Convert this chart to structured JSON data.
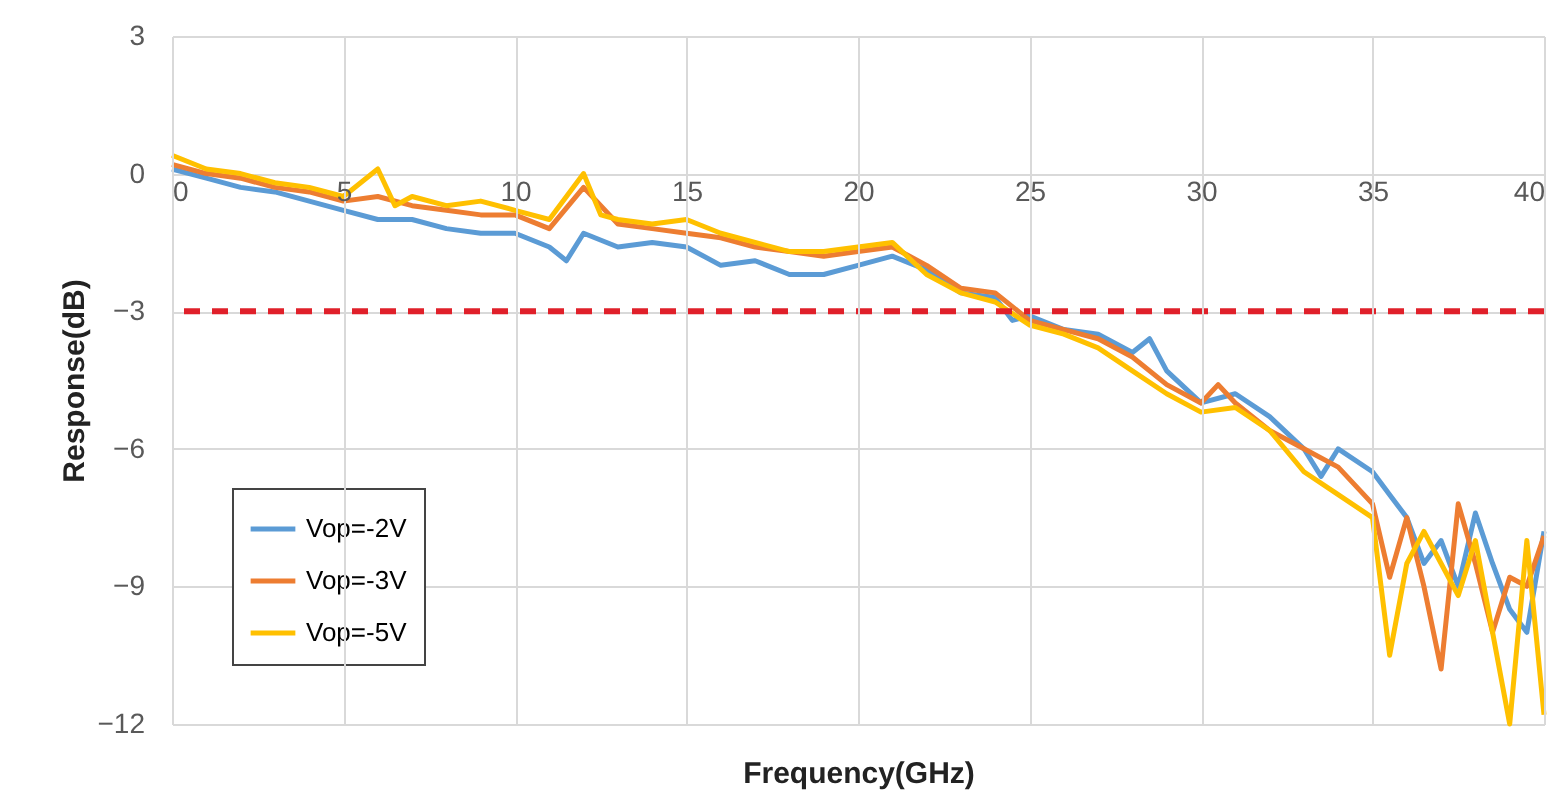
{
  "chart_data": {
    "type": "line",
    "xlabel": "Frequency(GHz)",
    "ylabel": "Response(dB)",
    "xlim": [
      0,
      40
    ],
    "ylim": [
      -12,
      3
    ],
    "xticks": [
      0,
      5,
      10,
      15,
      20,
      25,
      30,
      35,
      40
    ],
    "yticks": [
      -12,
      -9,
      -6,
      -3,
      0,
      3
    ],
    "grid": true,
    "legend": "bottom left",
    "line_style": "solid",
    "marker": "none",
    "series": [
      {
        "name": "Vop=-2V",
        "color": "#5b9bd5",
        "x": [
          0,
          1,
          2,
          3,
          4,
          5,
          6,
          7,
          8,
          9,
          10,
          11,
          11.5,
          12,
          13,
          14,
          15,
          16,
          17,
          18,
          19,
          20,
          21,
          22,
          23,
          24,
          24.5,
          25,
          26,
          27,
          28,
          28.5,
          29,
          30,
          31,
          32,
          33,
          33.5,
          34,
          35,
          35.5,
          36,
          36.5,
          37,
          37.5,
          38,
          38.5,
          39,
          39.5,
          40
        ],
        "values": [
          0.1,
          -0.1,
          -0.3,
          -0.4,
          -0.6,
          -0.8,
          -1.0,
          -1.0,
          -1.2,
          -1.3,
          -1.3,
          -1.6,
          -1.9,
          -1.3,
          -1.6,
          -1.5,
          -1.6,
          -2.0,
          -1.9,
          -2.2,
          -2.2,
          -2.0,
          -1.8,
          -2.1,
          -2.6,
          -2.7,
          -3.2,
          -3.1,
          -3.4,
          -3.5,
          -3.9,
          -3.6,
          -4.3,
          -5.0,
          -4.8,
          -5.3,
          -6.0,
          -6.6,
          -6.0,
          -6.5,
          -7.0,
          -7.5,
          -8.5,
          -8.0,
          -9.0,
          -7.4,
          -8.5,
          -9.5,
          -10.0,
          -7.8
        ]
      },
      {
        "name": "Vop=-3V",
        "color": "#ed7d31",
        "x": [
          0,
          1,
          2,
          3,
          4,
          5,
          6,
          7,
          8,
          9,
          10,
          11,
          12,
          13,
          14,
          15,
          16,
          17,
          18,
          19,
          20,
          21,
          22,
          23,
          24,
          25,
          26,
          27,
          28,
          29,
          30,
          30.5,
          31,
          32,
          33,
          34,
          35,
          35.5,
          36,
          36.5,
          37,
          37.5,
          38,
          38.5,
          39,
          39.5,
          40
        ],
        "values": [
          0.2,
          0.0,
          -0.1,
          -0.3,
          -0.4,
          -0.6,
          -0.5,
          -0.7,
          -0.8,
          -0.9,
          -0.9,
          -1.2,
          -0.3,
          -1.1,
          -1.2,
          -1.3,
          -1.4,
          -1.6,
          -1.7,
          -1.8,
          -1.7,
          -1.6,
          -2.0,
          -2.5,
          -2.6,
          -3.2,
          -3.4,
          -3.6,
          -4.0,
          -4.6,
          -5.0,
          -4.6,
          -5.0,
          -5.6,
          -6.0,
          -6.4,
          -7.2,
          -8.8,
          -7.5,
          -9.0,
          -10.8,
          -7.2,
          -8.5,
          -10.0,
          -8.8,
          -9.0,
          -7.9
        ]
      },
      {
        "name": "Vop=-5V",
        "color": "#ffc000",
        "x": [
          0,
          1,
          2,
          3,
          4,
          5,
          6,
          6.5,
          7,
          8,
          9,
          10,
          11,
          12,
          12.5,
          13,
          14,
          15,
          16,
          17,
          18,
          19,
          20,
          21,
          22,
          23,
          24,
          25,
          26,
          27,
          28,
          29,
          30,
          31,
          32,
          33,
          34,
          35,
          35.5,
          36,
          36.5,
          37,
          37.5,
          38,
          38.5,
          39,
          39.5,
          40
        ],
        "values": [
          0.4,
          0.1,
          0.0,
          -0.2,
          -0.3,
          -0.5,
          0.1,
          -0.7,
          -0.5,
          -0.7,
          -0.6,
          -0.8,
          -1.0,
          0.0,
          -0.9,
          -1.0,
          -1.1,
          -1.0,
          -1.3,
          -1.5,
          -1.7,
          -1.7,
          -1.6,
          -1.5,
          -2.2,
          -2.6,
          -2.8,
          -3.3,
          -3.5,
          -3.8,
          -4.3,
          -4.8,
          -5.2,
          -5.1,
          -5.6,
          -6.5,
          -7.0,
          -7.5,
          -10.5,
          -8.5,
          -7.8,
          -8.5,
          -9.2,
          -8.0,
          -10.0,
          -12.0,
          -8.0,
          -11.8
        ]
      }
    ],
    "ref_lines": [
      {
        "axis": "y",
        "value": -3,
        "color": "#e0202a",
        "line_style": "dashed"
      }
    ]
  }
}
